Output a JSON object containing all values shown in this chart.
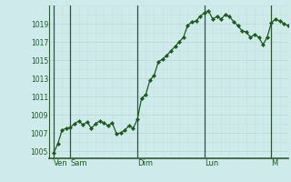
{
  "background_color": "#ceeaea",
  "grid_color_major": "#b8d8d0",
  "grid_color_minor": "#c8e2da",
  "line_color": "#1a5c1a",
  "marker_color": "#1a5c1a",
  "x_tick_labels": [
    "Ven",
    "Sam",
    "Dim",
    "Lun",
    "M"
  ],
  "x_tick_positions": [
    0,
    12,
    60,
    108,
    156
  ],
  "xlim": [
    -3,
    168
  ],
  "ylim": [
    1004.2,
    1021.0
  ],
  "yticks": [
    1005,
    1007,
    1009,
    1011,
    1013,
    1015,
    1017,
    1019
  ],
  "data_x": [
    0,
    3,
    6,
    9,
    12,
    15,
    18,
    21,
    24,
    27,
    30,
    33,
    36,
    39,
    42,
    45,
    48,
    51,
    54,
    57,
    60,
    63,
    66,
    69,
    72,
    75,
    78,
    81,
    84,
    87,
    90,
    93,
    96,
    99,
    102,
    105,
    108,
    111,
    114,
    117,
    120,
    123,
    126,
    129,
    132,
    135,
    138,
    141,
    144,
    147,
    150,
    153,
    156,
    159,
    162,
    165,
    168
  ],
  "data_y": [
    1004.8,
    1005.8,
    1007.3,
    1007.5,
    1007.6,
    1008.0,
    1008.3,
    1007.9,
    1008.2,
    1007.5,
    1008.0,
    1008.3,
    1008.1,
    1007.8,
    1008.1,
    1006.9,
    1007.0,
    1007.3,
    1007.8,
    1007.5,
    1008.5,
    1010.8,
    1011.2,
    1012.8,
    1013.3,
    1014.8,
    1015.1,
    1015.5,
    1016.0,
    1016.5,
    1017.0,
    1017.5,
    1018.8,
    1019.2,
    1019.3,
    1019.8,
    1020.2,
    1020.4,
    1019.5,
    1019.8,
    1019.5,
    1020.0,
    1019.8,
    1019.2,
    1018.8,
    1018.2,
    1018.1,
    1017.5,
    1017.8,
    1017.5,
    1016.7,
    1017.5,
    1019.1,
    1019.5,
    1019.3,
    1019.0,
    1018.8
  ],
  "ylabel_fontsize": 5.5,
  "xlabel_fontsize": 6.0
}
